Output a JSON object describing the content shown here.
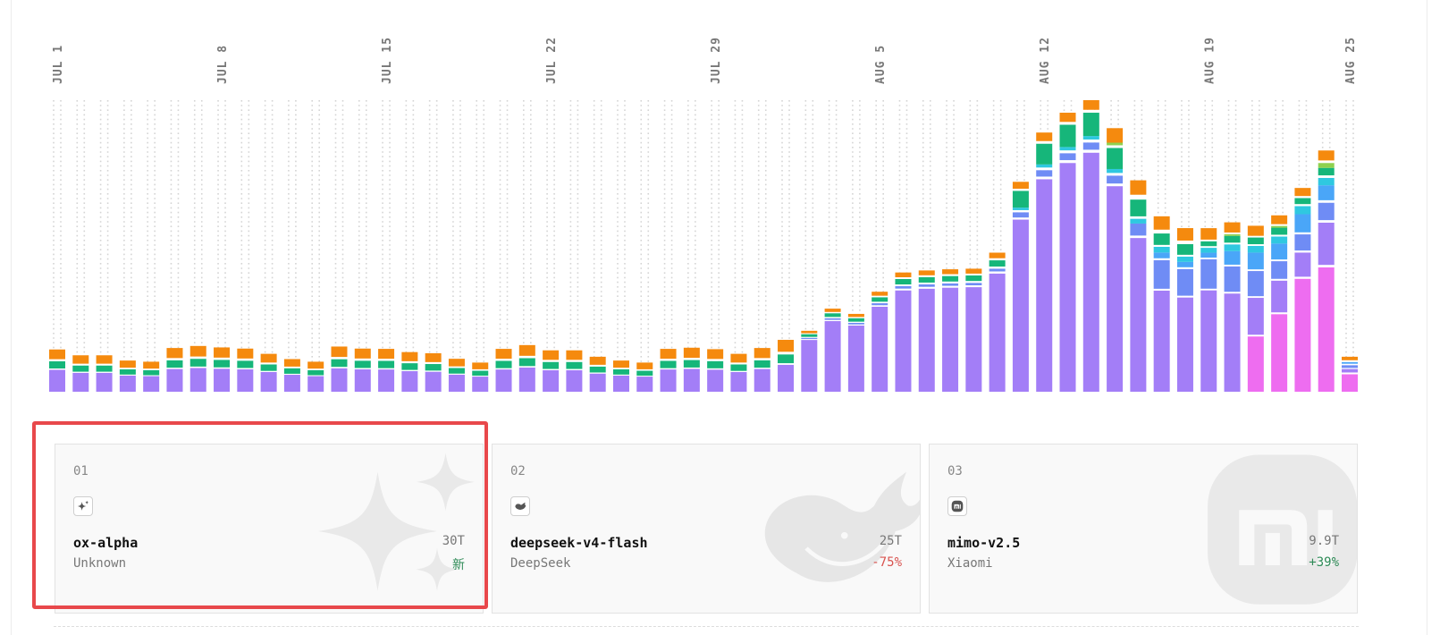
{
  "chart_data": {
    "type": "stacked-bar",
    "x_axis_labels": [
      "JUL 1",
      "JUL 8",
      "JUL 15",
      "JUL 22",
      "JUL 29",
      "AUG 5",
      "AUG 12",
      "AUG 19",
      "AUG 25"
    ],
    "label_day_index": [
      0,
      7,
      14,
      21,
      28,
      35,
      42,
      49,
      55
    ],
    "num_days": 56,
    "colors": {
      "purple": "#a37ef7",
      "magenta": "#ee6df0",
      "blue": "#6f8cf5",
      "sky": "#4aa6f8",
      "cyan": "#2fc8e0",
      "green": "#16b67a",
      "lime": "#8fd14f",
      "orange": "#f58a0e",
      "white_gap": "#ffffff"
    },
    "totals_relative": [
      0.145,
      0.125,
      0.125,
      0.107,
      0.103,
      0.15,
      0.157,
      0.152,
      0.148,
      0.13,
      0.112,
      0.103,
      0.155,
      0.148,
      0.147,
      0.136,
      0.132,
      0.113,
      0.1,
      0.147,
      0.16,
      0.142,
      0.142,
      0.12,
      0.107,
      0.1,
      0.147,
      0.151,
      0.146,
      0.13,
      0.15,
      0.178,
      0.209,
      0.285,
      0.267,
      0.343,
      0.409,
      0.416,
      0.42,
      0.422,
      0.477,
      0.72,
      0.889,
      0.957,
      1.0,
      0.904,
      0.824,
      0.654,
      0.61,
      0.561,
      0.581,
      0.575,
      0.605,
      0.692,
      0.853,
      0.12
    ],
    "series_order": [
      "magenta",
      "purple",
      "blue",
      "sky",
      "cyan",
      "green",
      "lime",
      "orange"
    ]
  },
  "cards": [
    {
      "rank": "01",
      "logo_icon": "sparkle-icon",
      "model": "ox-alpha",
      "provider": "Unknown",
      "tokens": "30T",
      "change": "新",
      "change_tone": "up"
    },
    {
      "rank": "02",
      "logo_icon": "whale-icon",
      "model": "deepseek-v4-flash",
      "provider": "DeepSeek",
      "tokens": "25T",
      "change": "-75%",
      "change_tone": "down"
    },
    {
      "rank": "03",
      "logo_icon": "xiaomi-icon",
      "model": "mimo-v2.5",
      "provider": "Xiaomi",
      "tokens": "9.9T",
      "change": "+39%",
      "change_tone": "up"
    }
  ]
}
